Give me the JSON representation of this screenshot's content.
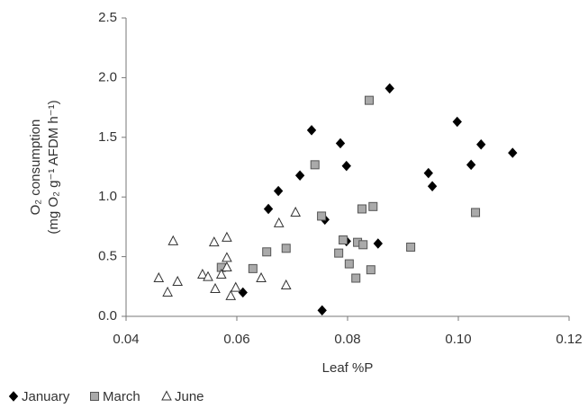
{
  "chart_data": {
    "type": "scatter",
    "x_label": "Leaf %P",
    "y_label": [
      "O₂ consumption",
      "(mg O₂ g⁻¹ AFDM h⁻¹)"
    ],
    "xlim": [
      0.04,
      0.12
    ],
    "xticks": [
      0.04,
      0.06,
      0.08,
      {
        "value": 0.1,
        "label": "0.10"
      },
      0.12
    ],
    "ylim": [
      0,
      2.5
    ],
    "yticks": [
      {
        "value": 0,
        "label": "0.0"
      },
      0.5,
      {
        "value": 1,
        "label": "1.0"
      },
      1.5,
      {
        "value": 2,
        "label": "2.0"
      },
      2.5
    ],
    "grid": false,
    "legend": "bottom",
    "series": [
      {
        "name": "January",
        "color": "#000000",
        "marker": "diamond",
        "x": [
          0.0611,
          0.0657,
          0.0675,
          0.0714,
          0.0735,
          0.0754,
          0.0759,
          0.0787,
          0.0798,
          0.0798,
          0.0855,
          0.0876,
          0.0946,
          0.0953,
          0.0998,
          0.1023,
          0.1041,
          0.1098
        ],
        "values": [
          0.2,
          0.9,
          1.05,
          1.18,
          1.56,
          0.05,
          0.81,
          1.45,
          1.26,
          0.63,
          0.61,
          1.91,
          1.2,
          1.09,
          1.63,
          1.27,
          1.44,
          1.37
        ]
      },
      {
        "name": "March",
        "color": "#aaaaaa",
        "marker": "square",
        "x": [
          0.0572,
          0.0629,
          0.0654,
          0.0689,
          0.0741,
          0.0753,
          0.0784,
          0.0792,
          0.0803,
          0.0815,
          0.0818,
          0.0828,
          0.0826,
          0.0846,
          0.0842,
          0.0839,
          0.0914,
          0.1031
        ],
        "values": [
          0.41,
          0.4,
          0.54,
          0.57,
          1.27,
          0.84,
          0.53,
          0.64,
          0.44,
          0.32,
          0.62,
          0.6,
          0.9,
          0.92,
          0.39,
          1.81,
          0.58,
          0.87
        ]
      },
      {
        "name": "June",
        "color": "#ffffff",
        "marker": "triangle",
        "x": [
          0.0459,
          0.0475,
          0.0485,
          0.0493,
          0.0538,
          0.0548,
          0.0559,
          0.0561,
          0.0572,
          0.0582,
          0.0582,
          0.0582,
          0.0589,
          0.0598,
          0.0644,
          0.0676,
          0.0689,
          0.0706
        ],
        "values": [
          0.32,
          0.2,
          0.63,
          0.29,
          0.35,
          0.33,
          0.62,
          0.23,
          0.35,
          0.66,
          0.49,
          0.41,
          0.17,
          0.24,
          0.32,
          0.78,
          0.26,
          0.87
        ]
      }
    ]
  }
}
